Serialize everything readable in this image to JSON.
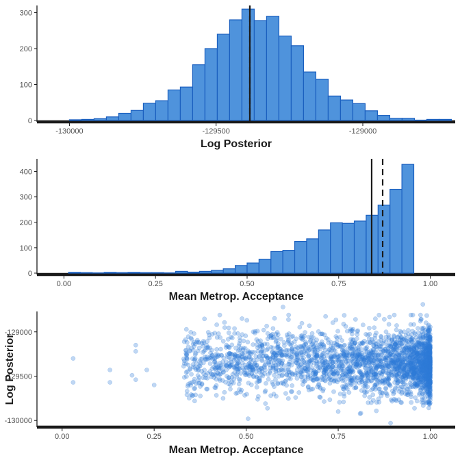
{
  "colors": {
    "fill": "#4f93dc",
    "stroke": "#1a5fbf",
    "point": "#2f7ad6",
    "axis": "#1a1a1a",
    "vline": "#1a1a1a"
  },
  "chart_data": [
    {
      "type": "bar",
      "xlabel": "Log Posterior",
      "ylabel": "",
      "xlim": [
        -130050,
        -128720
      ],
      "ylim": [
        0,
        320
      ],
      "xticks": [
        -130000,
        -129500,
        -129000
      ],
      "xtick_labels": [
        "-130000",
        "-129500",
        "-129000"
      ],
      "yticks": [
        0,
        100,
        200,
        300
      ],
      "ytick_labels": [
        "0",
        "100",
        "200",
        "300"
      ],
      "bin_start": -130000,
      "bin_width": 42,
      "counts": [
        2,
        3,
        5,
        10,
        20,
        28,
        48,
        55,
        85,
        93,
        155,
        200,
        240,
        280,
        310,
        278,
        290,
        235,
        208,
        135,
        115,
        68,
        57,
        47,
        27,
        14,
        6,
        6,
        1,
        3,
        3
      ],
      "vlines": [
        {
          "value": -129385,
          "style": "solid"
        },
        {
          "value": -129385,
          "style": "dashed"
        }
      ]
    },
    {
      "type": "bar",
      "xlabel": "Mean Metrop. Acceptance",
      "ylabel": "",
      "xlim": [
        -0.025,
        1.04
      ],
      "ylim": [
        0,
        450
      ],
      "xticks": [
        0.0,
        0.25,
        0.5,
        0.75,
        1.0
      ],
      "xtick_labels": [
        "0.00",
        "0.25",
        "0.50",
        "0.75",
        "1.00"
      ],
      "yticks": [
        0,
        100,
        200,
        300,
        400
      ],
      "ytick_labels": [
        "0",
        "100",
        "200",
        "300",
        "400"
      ],
      "bin_start": 0.0125,
      "bin_width": 0.0325,
      "counts": [
        3,
        2,
        1,
        3,
        2,
        3,
        2,
        2,
        1,
        7,
        4,
        7,
        11,
        17,
        30,
        40,
        55,
        85,
        90,
        125,
        135,
        170,
        198,
        196,
        205,
        228,
        268,
        330,
        428
      ],
      "vlines": [
        {
          "value": 0.84,
          "style": "solid"
        },
        {
          "value": 0.87,
          "style": "dashed"
        }
      ]
    },
    {
      "type": "scatter",
      "xlabel": "Mean Metrop. Acceptance",
      "ylabel": "Log Posterior",
      "xlim": [
        -0.02,
        1.04
      ],
      "ylim": [
        -130060,
        -128770
      ],
      "xticks": [
        0.0,
        0.25,
        0.5,
        0.75,
        1.0
      ],
      "xtick_labels": [
        "0.00",
        "0.25",
        "0.50",
        "0.75",
        "1.00"
      ],
      "yticks": [
        -130000,
        -129500,
        -129000
      ],
      "ytick_labels": [
        "-130000",
        "-129500",
        "-129000"
      ],
      "points": [
        [
          0.03,
          -129300
        ],
        [
          0.03,
          -129570
        ],
        [
          0.13,
          -129430
        ],
        [
          0.13,
          -129570
        ],
        [
          0.19,
          -129490
        ],
        [
          0.2,
          -129220
        ],
        [
          0.2,
          -129150
        ],
        [
          0.2,
          -129540
        ],
        [
          0.23,
          -129430
        ],
        [
          0.25,
          -129600
        ],
        [
          0.35,
          -129070
        ],
        [
          0.36,
          -129310
        ],
        [
          0.36,
          -129780
        ],
        [
          0.38,
          -129130
        ],
        [
          0.42,
          -128920
        ],
        [
          0.47,
          -129280
        ],
        [
          0.52,
          -129500
        ],
        [
          0.55,
          -129470
        ],
        [
          0.6,
          -128720
        ],
        [
          0.62,
          -129300
        ],
        [
          0.7,
          -129400
        ],
        [
          0.75,
          -129900
        ],
        [
          0.8,
          -129350
        ],
        [
          0.85,
          -129600
        ],
        [
          0.88,
          -129000
        ],
        [
          0.9,
          -129700
        ],
        [
          0.93,
          -129300
        ],
        [
          0.95,
          -129450
        ],
        [
          0.98,
          -129200
        ],
        [
          0.98,
          -128690
        ],
        [
          1.0,
          -129350
        ],
        [
          1.0,
          -129500
        ]
      ],
      "generated": {
        "count": 2600,
        "x_min": 0.33,
        "x_max": 1.0,
        "y_center": -129350,
        "y_sd": 185,
        "seed": 7
      }
    }
  ]
}
